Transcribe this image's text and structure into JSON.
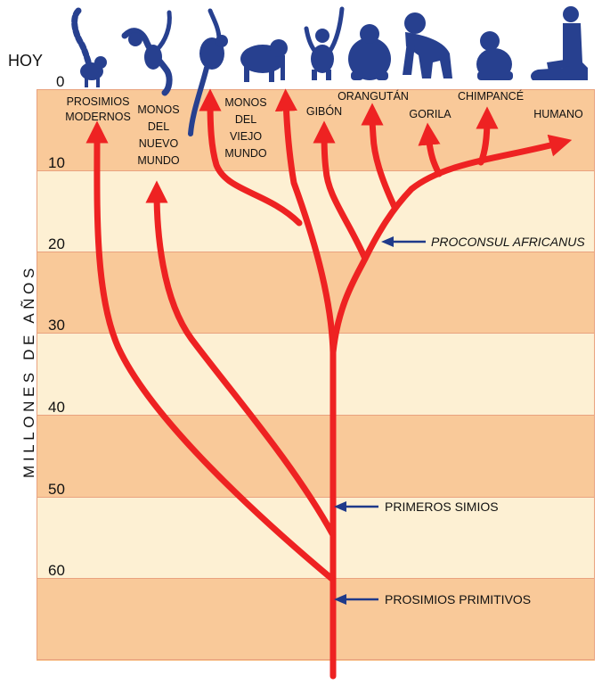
{
  "header": {
    "today_label": "HOY"
  },
  "axis": {
    "label": "MILLONES DE AÑOS",
    "ticks": [
      "0",
      "10",
      "20",
      "30",
      "40",
      "50",
      "60"
    ]
  },
  "taxa": {
    "prosimios_modernos": {
      "line1": "PROSIMIOS",
      "line2": "MODERNOS"
    },
    "monos_nuevo_mundo": {
      "line1": "MONOS",
      "line2": "DEL",
      "line3": "NUEVO",
      "line4": "MUNDO"
    },
    "monos_viejo_mundo": {
      "line1": "MONOS",
      "line2": "DEL",
      "line3": "VIEJO",
      "line4": "MUNDO"
    },
    "gibon": "GIBÓN",
    "orangutan": "ORANGUTÁN",
    "gorila": "GORILA",
    "chimpance": "CHIMPANCÉ",
    "humano": "HUMANO"
  },
  "annotations": {
    "proconsul": "PROCONSUL AFRICANUS",
    "primeros_simios": "PRIMEROS SIMIOS",
    "prosimios_primitivos": "PROSIMIOS PRIMITIVOS"
  },
  "colors": {
    "band_dark": "#f9c999",
    "band_light": "#fdf0d3",
    "tree": "#ee2222",
    "silhouettes": "#27408f",
    "pointer_arrows": "#1f3a8a"
  },
  "icons": [
    "lemur-icon",
    "spider-monkey-icon",
    "gibbon-hanging-icon",
    "baboon-icon",
    "gibbon-icon",
    "orangutan-icon",
    "gorilla-icon",
    "chimpanzee-icon",
    "human-icon"
  ]
}
